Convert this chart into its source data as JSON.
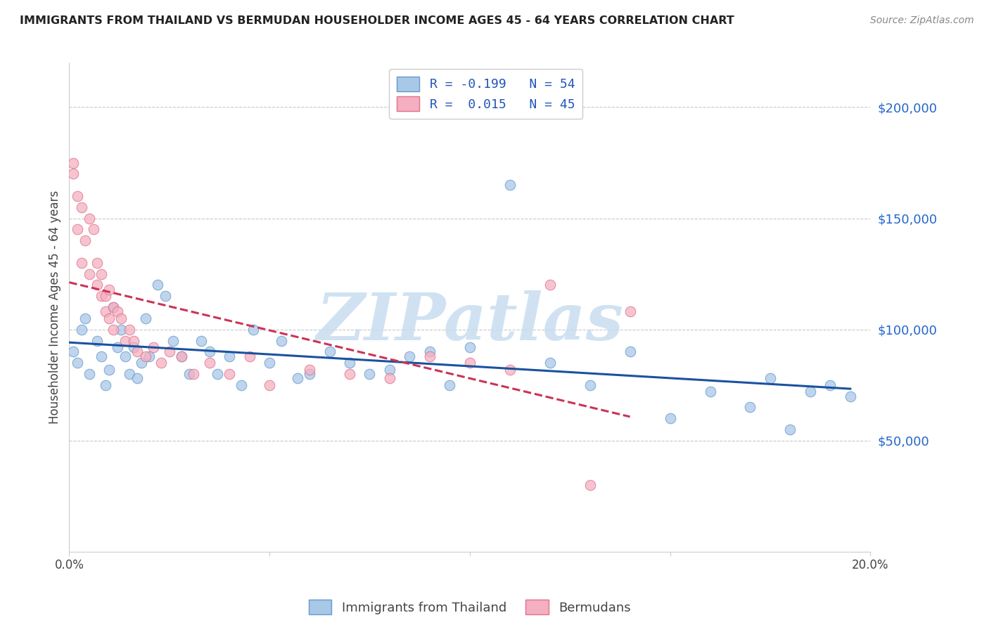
{
  "title": "IMMIGRANTS FROM THAILAND VS BERMUDAN HOUSEHOLDER INCOME AGES 45 - 64 YEARS CORRELATION CHART",
  "source": "Source: ZipAtlas.com",
  "ylabel": "Householder Income Ages 45 - 64 years",
  "xlim": [
    0.0,
    0.2
  ],
  "ylim": [
    0,
    220000
  ],
  "xtick_positions": [
    0.0,
    0.05,
    0.1,
    0.15,
    0.2
  ],
  "xtick_labels": [
    "0.0%",
    "",
    "",
    "",
    "20.0%"
  ],
  "ytick_positions": [
    50000,
    100000,
    150000,
    200000
  ],
  "ytick_labels": [
    "$50,000",
    "$100,000",
    "$150,000",
    "$200,000"
  ],
  "legend1_label": "R = -0.199   N = 54",
  "legend2_label": "R =  0.015   N = 45",
  "blue_color": "#a8c8e8",
  "blue_edge_color": "#6699cc",
  "pink_color": "#f4b0c0",
  "pink_edge_color": "#e07090",
  "blue_line_color": "#1a52a0",
  "pink_line_color": "#cc3355",
  "watermark_text": "ZIPatlas",
  "watermark_color": "#c8ddf0",
  "background_color": "#ffffff",
  "grid_color": "#bbbbbb",
  "yaxis_label_color": "#2266cc",
  "legend_text_color": "#2255bb",
  "bottom_legend_color": "#444444",
  "blue_x": [
    0.001,
    0.002,
    0.003,
    0.004,
    0.005,
    0.007,
    0.008,
    0.009,
    0.01,
    0.011,
    0.012,
    0.013,
    0.014,
    0.015,
    0.016,
    0.017,
    0.018,
    0.019,
    0.02,
    0.022,
    0.024,
    0.026,
    0.028,
    0.03,
    0.033,
    0.035,
    0.037,
    0.04,
    0.043,
    0.046,
    0.05,
    0.053,
    0.057,
    0.06,
    0.065,
    0.07,
    0.075,
    0.08,
    0.085,
    0.09,
    0.095,
    0.1,
    0.11,
    0.12,
    0.13,
    0.14,
    0.15,
    0.16,
    0.17,
    0.175,
    0.18,
    0.185,
    0.19,
    0.195
  ],
  "blue_y": [
    90000,
    85000,
    100000,
    105000,
    80000,
    95000,
    88000,
    75000,
    82000,
    110000,
    92000,
    100000,
    88000,
    80000,
    92000,
    78000,
    85000,
    105000,
    88000,
    120000,
    115000,
    95000,
    88000,
    80000,
    95000,
    90000,
    80000,
    88000,
    75000,
    100000,
    85000,
    95000,
    78000,
    80000,
    90000,
    85000,
    80000,
    82000,
    88000,
    90000,
    75000,
    92000,
    165000,
    85000,
    75000,
    90000,
    60000,
    72000,
    65000,
    78000,
    55000,
    72000,
    75000,
    70000
  ],
  "pink_x": [
    0.001,
    0.001,
    0.002,
    0.002,
    0.003,
    0.003,
    0.004,
    0.005,
    0.005,
    0.006,
    0.007,
    0.007,
    0.008,
    0.008,
    0.009,
    0.009,
    0.01,
    0.01,
    0.011,
    0.011,
    0.012,
    0.013,
    0.014,
    0.015,
    0.016,
    0.017,
    0.019,
    0.021,
    0.023,
    0.025,
    0.028,
    0.031,
    0.035,
    0.04,
    0.045,
    0.05,
    0.06,
    0.07,
    0.08,
    0.09,
    0.1,
    0.11,
    0.12,
    0.13,
    0.14
  ],
  "pink_y": [
    175000,
    170000,
    160000,
    145000,
    155000,
    130000,
    140000,
    150000,
    125000,
    145000,
    130000,
    120000,
    125000,
    115000,
    115000,
    108000,
    118000,
    105000,
    110000,
    100000,
    108000,
    105000,
    95000,
    100000,
    95000,
    90000,
    88000,
    92000,
    85000,
    90000,
    88000,
    80000,
    85000,
    80000,
    88000,
    75000,
    82000,
    80000,
    78000,
    88000,
    85000,
    82000,
    120000,
    30000,
    108000
  ]
}
